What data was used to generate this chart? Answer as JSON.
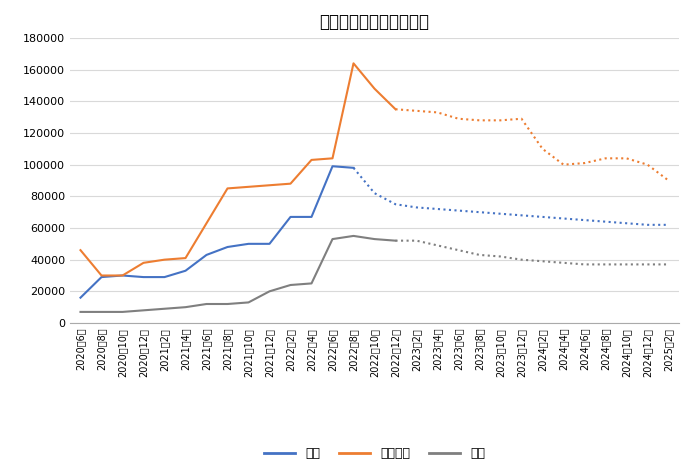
{
  "title": "輸入燃料価格の推移予測",
  "labels": [
    "2020年6月",
    "2020年8月",
    "2020年10月",
    "2020年12月",
    "2021年2月",
    "2021年4月",
    "2021年6月",
    "2021年8月",
    "2021年10月",
    "2021年12月",
    "2022年2月",
    "2022年4月",
    "2022年6月",
    "2022年8月",
    "2022年10月",
    "2022年12月",
    "2023年2月",
    "2023年4月",
    "2023年6月",
    "2023年8月",
    "2023年10月",
    "2023年12月",
    "2024年2月",
    "2024年4月",
    "2024年6月",
    "2024年8月",
    "2024年10月",
    "2024年12月",
    "2025年2月"
  ],
  "oil_solid": [
    16000,
    29000,
    30000,
    29000,
    29000,
    33000,
    43000,
    48000,
    50000,
    50000,
    67000,
    67000,
    99000,
    98000,
    null,
    null,
    null,
    null,
    null,
    null,
    null,
    null,
    null,
    null,
    null,
    null,
    null,
    null,
    null
  ],
  "oil_dotted": [
    null,
    null,
    null,
    null,
    null,
    null,
    null,
    null,
    null,
    null,
    null,
    null,
    null,
    98000,
    82000,
    75000,
    73000,
    72000,
    71000,
    70000,
    69000,
    68000,
    67000,
    66000,
    65000,
    64000,
    63000,
    62000,
    62000
  ],
  "gas_solid": [
    46000,
    30000,
    30000,
    38000,
    40000,
    41000,
    63000,
    85000,
    86000,
    87000,
    88000,
    103000,
    104000,
    164000,
    148000,
    135000,
    null,
    null,
    null,
    null,
    null,
    null,
    null,
    null,
    null,
    null,
    null,
    null,
    null
  ],
  "gas_dotted": [
    null,
    null,
    null,
    null,
    null,
    null,
    null,
    null,
    null,
    null,
    null,
    null,
    null,
    null,
    null,
    135000,
    134000,
    133000,
    129000,
    128000,
    128000,
    129000,
    110000,
    100000,
    101000,
    104000,
    104000,
    100000,
    90000
  ],
  "coal_solid": [
    7000,
    7000,
    7000,
    8000,
    9000,
    10000,
    12000,
    12000,
    13000,
    20000,
    24000,
    25000,
    53000,
    55000,
    53000,
    52000,
    null,
    null,
    null,
    null,
    null,
    null,
    null,
    null,
    null,
    null,
    null,
    null,
    null
  ],
  "coal_dotted": [
    null,
    null,
    null,
    null,
    null,
    null,
    null,
    null,
    null,
    null,
    null,
    null,
    null,
    null,
    null,
    52000,
    52000,
    49000,
    46000,
    43000,
    42000,
    40000,
    39000,
    38000,
    37000,
    37000,
    37000,
    37000,
    37000
  ],
  "oil_color": "#4472C4",
  "gas_color": "#ED7D31",
  "coal_color": "#7F7F7F",
  "legend_labels": [
    "石油",
    "天然ガス",
    "石炭"
  ],
  "ylim": [
    0,
    180000
  ],
  "yticks": [
    0,
    20000,
    40000,
    60000,
    80000,
    100000,
    120000,
    140000,
    160000,
    180000
  ],
  "background_color": "#FFFFFF",
  "grid_color": "#D9D9D9"
}
